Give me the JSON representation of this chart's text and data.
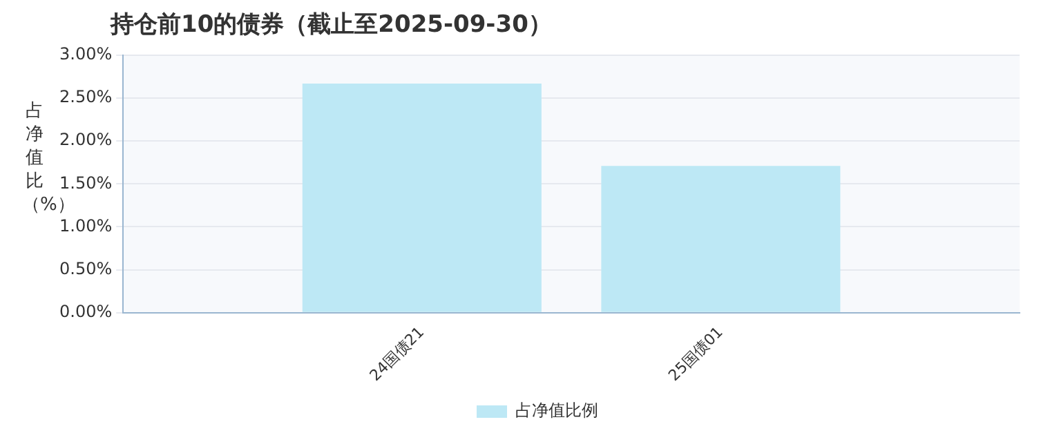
{
  "chart_data": {
    "type": "bar",
    "title": "持仓前10的债券（截止至2025-09-30）",
    "ylabel": "占净值比（%）",
    "categories": [
      "24国债21",
      "25国债01"
    ],
    "series": [
      {
        "name": "占净值比例",
        "color": "#bde8f5",
        "values": [
          2.67,
          1.71
        ]
      }
    ],
    "ylim": [
      0,
      3
    ],
    "yticks": [
      {
        "value": 0,
        "label": "0.00%"
      },
      {
        "value": 0.5,
        "label": "0.50%"
      },
      {
        "value": 1,
        "label": "1.00%"
      },
      {
        "value": 1.5,
        "label": "1.50%"
      },
      {
        "value": 2,
        "label": "2.00%"
      },
      {
        "value": 2.5,
        "label": "2.50%"
      },
      {
        "value": 3,
        "label": "3.00%"
      }
    ],
    "grid": "y",
    "legend": "bottom"
  }
}
